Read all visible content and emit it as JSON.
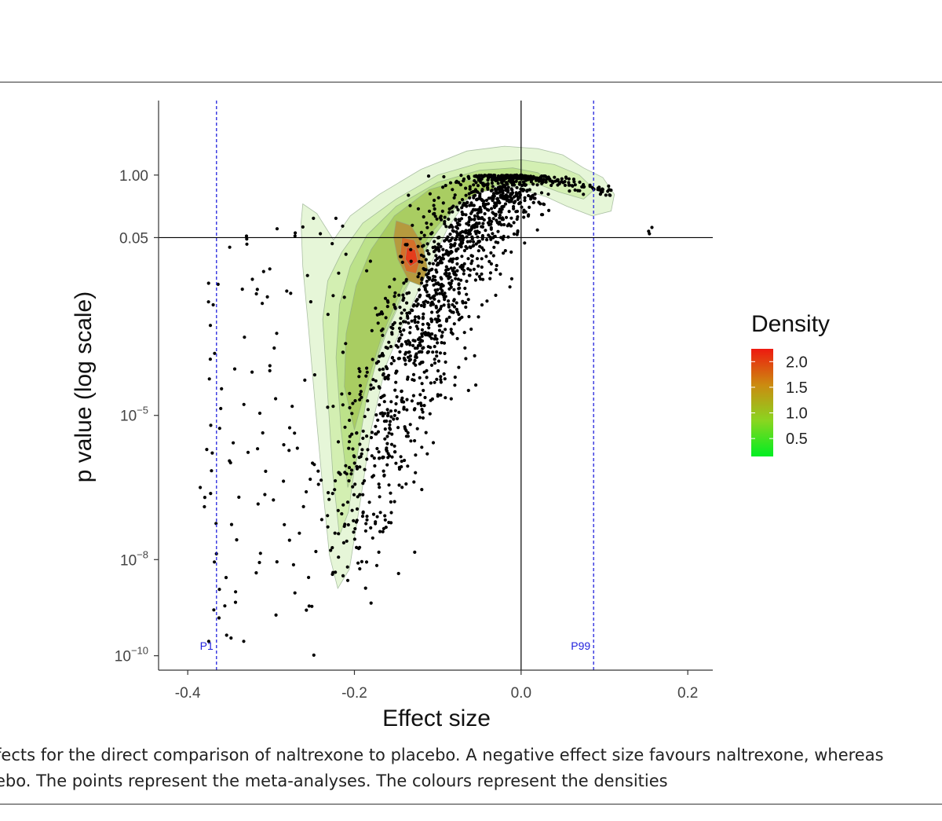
{
  "caption": {
    "line1": "fects for the direct comparison of naltrexone to placebo. A negative effect size favours naltrexone, whereas",
    "line2": "ebo. The points represent the meta-analyses. The colours represent the densities"
  },
  "chart_data": {
    "type": "scatter",
    "title": "",
    "xlabel": "Effect size",
    "ylabel": "p value (log scale)",
    "xlim": [
      -0.435,
      0.23
    ],
    "ylim_log10": [
      -10.3,
      1.55
    ],
    "x_ticks": [
      {
        "value": -0.4,
        "label": "-0.4"
      },
      {
        "value": -0.2,
        "label": "-0.2"
      },
      {
        "value": 0.0,
        "label": "0.0"
      },
      {
        "value": 0.2,
        "label": "0.2"
      }
    ],
    "y_ticks": [
      {
        "log10": 0,
        "label": "1.00"
      },
      {
        "log10": -1.301,
        "label": "0.05"
      },
      {
        "log10": -5,
        "base": "10",
        "exp": "−5"
      },
      {
        "log10": -8,
        "base": "10",
        "exp": "−8"
      },
      {
        "log10": -10,
        "base": "10",
        "exp": "−10"
      }
    ],
    "reference_lines": [
      {
        "axis": "x",
        "value": 0.0,
        "style": "solid",
        "color": "#000000"
      },
      {
        "axis": "y",
        "log10": -1.301,
        "style": "solid",
        "color": "#000000"
      },
      {
        "axis": "x",
        "value": -0.3655,
        "style": "dashed",
        "color": "#2222dd",
        "label": "P1"
      },
      {
        "axis": "x",
        "value": 0.087,
        "style": "dashed",
        "color": "#2222dd",
        "label": "P99"
      }
    ],
    "density_contours": [
      {
        "level": 0.1,
        "color": "#e6f6d8",
        "points": [
          [
            -0.264,
            -1.0
          ],
          [
            -0.262,
            -1.9
          ],
          [
            -0.255,
            -3.2
          ],
          [
            -0.247,
            -4.8
          ],
          [
            -0.238,
            -6.5
          ],
          [
            -0.23,
            -7.9
          ],
          [
            -0.22,
            -8.6
          ],
          [
            -0.206,
            -8.2
          ],
          [
            -0.193,
            -6.8
          ],
          [
            -0.18,
            -5.3
          ],
          [
            -0.163,
            -4.0
          ],
          [
            -0.142,
            -3.1
          ],
          [
            -0.115,
            -2.1
          ],
          [
            -0.088,
            -1.1
          ],
          [
            -0.058,
            -0.35
          ],
          [
            -0.03,
            -0.15
          ],
          [
            0.0,
            -0.3
          ],
          [
            0.03,
            -0.45
          ],
          [
            0.055,
            -0.65
          ],
          [
            0.085,
            -0.85
          ],
          [
            0.108,
            -0.75
          ],
          [
            0.112,
            -0.4
          ],
          [
            0.098,
            -0.05
          ],
          [
            0.075,
            0.15
          ],
          [
            0.05,
            0.42
          ],
          [
            0.02,
            0.55
          ],
          [
            -0.02,
            0.6
          ],
          [
            -0.065,
            0.5
          ],
          [
            -0.12,
            0.12
          ],
          [
            -0.17,
            -0.4
          ],
          [
            -0.205,
            -0.85
          ],
          [
            -0.225,
            -1.35
          ],
          [
            -0.245,
            -0.8
          ],
          [
            -0.262,
            -0.6
          ]
        ]
      },
      {
        "level": 0.3,
        "color": "#d3efb2",
        "points": [
          [
            -0.238,
            -3.0
          ],
          [
            -0.232,
            -4.6
          ],
          [
            -0.226,
            -6.2
          ],
          [
            -0.218,
            -7.5
          ],
          [
            -0.207,
            -7.0
          ],
          [
            -0.196,
            -5.6
          ],
          [
            -0.182,
            -4.3
          ],
          [
            -0.162,
            -3.3
          ],
          [
            -0.136,
            -2.3
          ],
          [
            -0.108,
            -1.35
          ],
          [
            -0.078,
            -0.6
          ],
          [
            -0.05,
            -0.2
          ],
          [
            -0.02,
            -0.12
          ],
          [
            0.01,
            -0.12
          ],
          [
            0.045,
            -0.35
          ],
          [
            0.075,
            -0.5
          ],
          [
            0.088,
            -0.3
          ],
          [
            0.07,
            0.0
          ],
          [
            0.04,
            0.22
          ],
          [
            0.0,
            0.32
          ],
          [
            -0.05,
            0.25
          ],
          [
            -0.1,
            0.0
          ],
          [
            -0.15,
            -0.5
          ],
          [
            -0.19,
            -1.0
          ],
          [
            -0.215,
            -1.6
          ],
          [
            -0.232,
            -2.2
          ]
        ]
      },
      {
        "level": 0.6,
        "color": "#bce28a",
        "points": [
          [
            -0.222,
            -3.8
          ],
          [
            -0.216,
            -5.3
          ],
          [
            -0.208,
            -6.5
          ],
          [
            -0.198,
            -6.0
          ],
          [
            -0.186,
            -4.7
          ],
          [
            -0.168,
            -3.5
          ],
          [
            -0.142,
            -2.45
          ],
          [
            -0.11,
            -1.4
          ],
          [
            -0.08,
            -0.7
          ],
          [
            -0.05,
            -0.3
          ],
          [
            -0.02,
            -0.2
          ],
          [
            0.01,
            -0.2
          ],
          [
            0.035,
            -0.15
          ],
          [
            0.02,
            0.05
          ],
          [
            -0.01,
            0.15
          ],
          [
            -0.05,
            0.1
          ],
          [
            -0.1,
            -0.15
          ],
          [
            -0.15,
            -0.65
          ],
          [
            -0.185,
            -1.25
          ],
          [
            -0.205,
            -1.9
          ],
          [
            -0.218,
            -2.7
          ]
        ]
      },
      {
        "level": 1.0,
        "color": "#a9cd62",
        "points": [
          [
            -0.212,
            -4.4
          ],
          [
            -0.2,
            -5.3
          ],
          [
            -0.186,
            -4.4
          ],
          [
            -0.168,
            -3.4
          ],
          [
            -0.142,
            -2.3
          ],
          [
            -0.11,
            -1.25
          ],
          [
            -0.08,
            -0.65
          ],
          [
            -0.05,
            -0.35
          ],
          [
            -0.03,
            -0.3
          ],
          [
            -0.04,
            -0.15
          ],
          [
            -0.07,
            -0.1
          ],
          [
            -0.11,
            -0.3
          ],
          [
            -0.152,
            -0.85
          ],
          [
            -0.18,
            -1.55
          ],
          [
            -0.198,
            -2.3
          ],
          [
            -0.21,
            -3.3
          ]
        ]
      },
      {
        "level": 1.4,
        "color": "#b59a3e",
        "points": [
          [
            -0.15,
            -0.95
          ],
          [
            -0.132,
            -1.05
          ],
          [
            -0.118,
            -1.45
          ],
          [
            -0.112,
            -1.95
          ],
          [
            -0.12,
            -2.3
          ],
          [
            -0.135,
            -2.2
          ],
          [
            -0.148,
            -1.75
          ],
          [
            -0.153,
            -1.3
          ]
        ]
      },
      {
        "level": 1.8,
        "color": "#d46f2a",
        "points": [
          [
            -0.143,
            -1.3
          ],
          [
            -0.128,
            -1.35
          ],
          [
            -0.12,
            -1.7
          ],
          [
            -0.126,
            -2.05
          ],
          [
            -0.138,
            -2.0
          ],
          [
            -0.145,
            -1.65
          ]
        ]
      },
      {
        "level": 2.2,
        "color": "#e53c1c",
        "points": [
          [
            -0.137,
            -1.5
          ],
          [
            -0.127,
            -1.55
          ],
          [
            -0.124,
            -1.8
          ],
          [
            -0.133,
            -1.9
          ],
          [
            -0.139,
            -1.75
          ]
        ]
      }
    ],
    "legend": {
      "title": "Density",
      "ticks": [
        {
          "label": "2.0",
          "value": 2.0
        },
        {
          "label": "1.5",
          "value": 1.5
        },
        {
          "label": "1.0",
          "value": 1.0
        },
        {
          "label": "0.5",
          "value": 0.5
        }
      ],
      "range": [
        0.15,
        2.25
      ],
      "colors": [
        "#00ee22",
        "#8ad520",
        "#cc8a10",
        "#ee1a10"
      ]
    },
    "points_summary": "~2000 meta-analysis estimates, dense along a curve from (-0.22, 1e-8) up to (0.0, 1.0) and out to (0.1, ~0.5); sparse scatter towards x = -0.38"
  }
}
